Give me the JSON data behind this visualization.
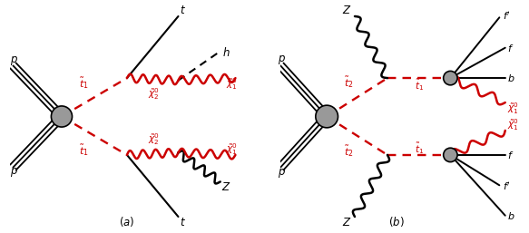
{
  "fig_width": 5.83,
  "fig_height": 2.57,
  "dpi": 100,
  "background": "#ffffff",
  "red": "#cc0000",
  "black": "#000000",
  "blob_color": "#999999"
}
